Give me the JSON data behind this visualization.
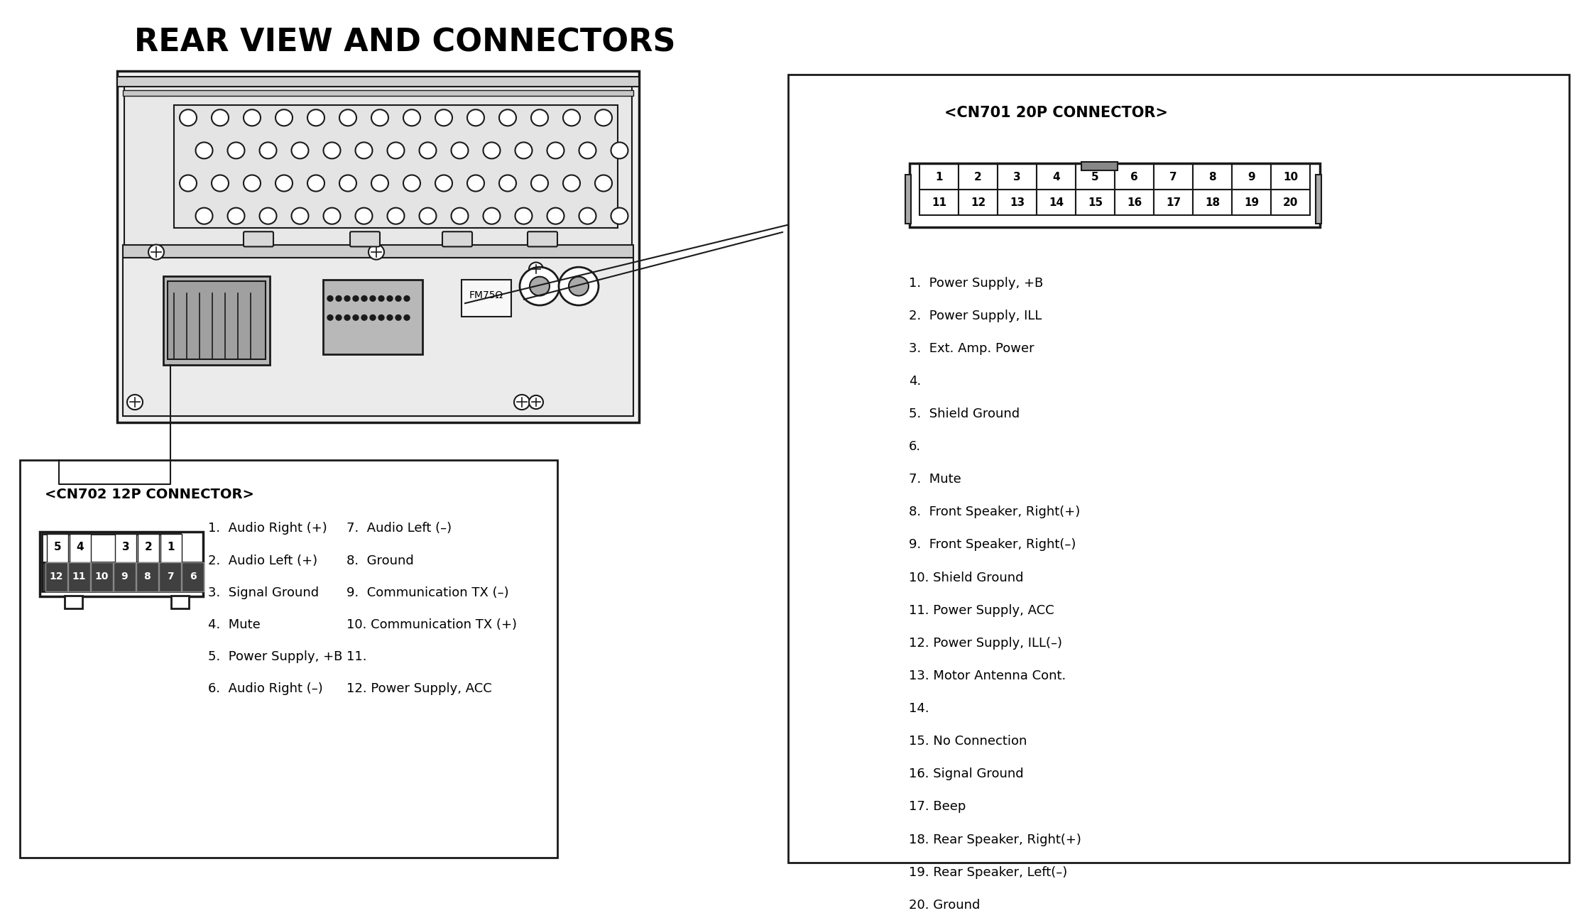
{
  "title": "REAR VIEW AND CONNECTORS",
  "bg_color": "#ffffff",
  "title_fontsize": 32,
  "cn701_title": "<CN701 20P CONNECTOR>",
  "cn701_row1": [
    "10",
    "9",
    "8",
    "7",
    "6",
    "5",
    "4",
    "3",
    "2",
    "1"
  ],
  "cn701_row2": [
    "20",
    "19",
    "18",
    "17",
    "16",
    "15",
    "14",
    "13",
    "12",
    "11"
  ],
  "cn701_pins": [
    "1.  Power Supply, +B",
    "2.  Power Supply, ILL",
    "3.  Ext. Amp. Power",
    "4.",
    "5.  Shield Ground",
    "6.",
    "7.  Mute",
    "8.  Front Speaker, Right(+)",
    "9.  Front Speaker, Right(–)",
    "10. Shield Ground",
    "11. Power Supply, ACC",
    "12. Power Supply, ILL(–)",
    "13. Motor Antenna Cont.",
    "14.",
    "15. No Connection",
    "16. Signal Ground",
    "17. Beep",
    "18. Rear Speaker, Right(+)",
    "19. Rear Speaker, Left(–)",
    "20. Ground"
  ],
  "cn702_title": "<CN702 12P CONNECTOR>",
  "cn702_row1_labels": [
    "5",
    "4",
    "3",
    "2",
    "1"
  ],
  "cn702_row2_labels": [
    "12",
    "11",
    "10",
    "9",
    "8",
    "7",
    "6"
  ],
  "cn702_pins_left": [
    "1.  Audio Right (+)",
    "2.  Audio Left (+)",
    "3.  Signal Ground",
    "4.  Mute",
    "5.  Power Supply, +B",
    "6.  Audio Right (–)"
  ],
  "cn702_pins_right": [
    "7.  Audio Left (–)",
    "8.  Ground",
    "9.  Communication TX (–)",
    "10. Communication TX (+)",
    "11.",
    "12. Power Supply, ACC"
  ],
  "text_color": "#000000",
  "line_color": "#1a1a1a"
}
